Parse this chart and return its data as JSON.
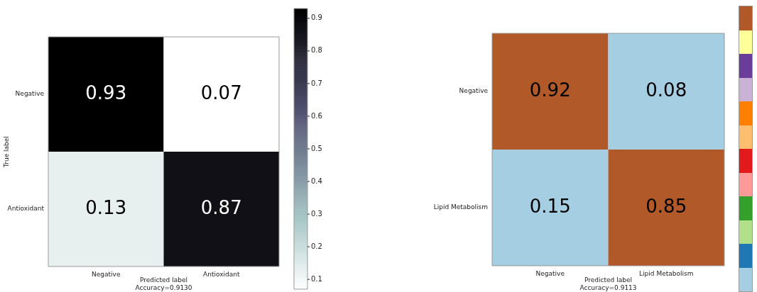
{
  "chart_data": [
    {
      "type": "heatmap",
      "categories": [
        "Negative",
        "Antioxidant"
      ],
      "y_categories": [
        "Negative",
        "Antioxidant"
      ],
      "cells": [
        [
          0.93,
          0.07
        ],
        [
          0.13,
          0.87
        ]
      ],
      "xlabel": "Predicted label",
      "ylabel": "True label",
      "annotations": [
        "Accuracy=0.9130"
      ],
      "clim": [
        0.07,
        0.93
      ],
      "cticks": [
        0.1,
        0.2,
        0.3,
        0.4,
        0.5,
        0.6,
        0.7,
        0.8,
        0.9
      ],
      "data_labels": true
    },
    {
      "type": "heatmap",
      "categories": [
        "Negative",
        "Lipid Metabolism"
      ],
      "y_categories": [
        "Negative",
        "Lipid Metabolism"
      ],
      "cells": [
        [
          0.92,
          0.08
        ],
        [
          0.15,
          0.85
        ]
      ],
      "xlabel": "Predicted label",
      "annotations": [
        "Accuracy=0.9113"
      ],
      "data_labels": true
    }
  ]
}
